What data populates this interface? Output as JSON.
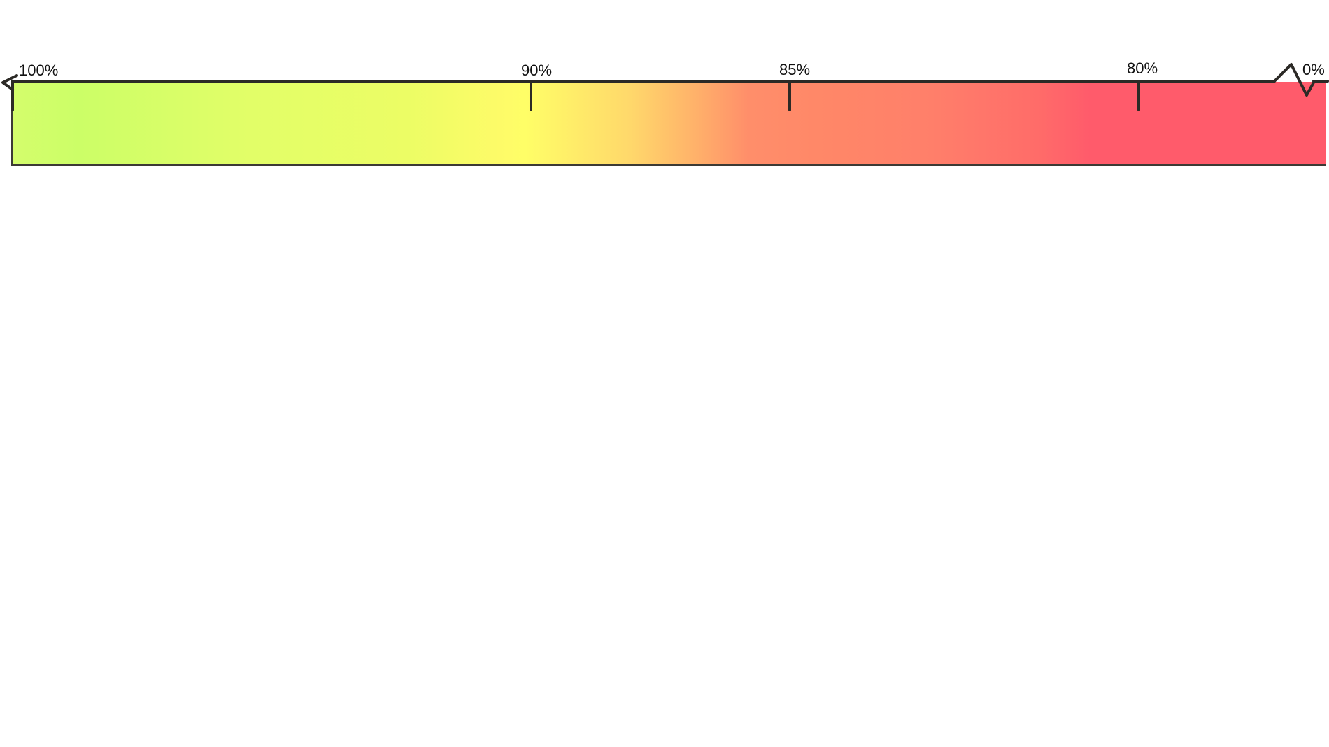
{
  "scale": {
    "ticks": [
      {
        "label": "100%",
        "value": 100
      },
      {
        "label": "90%",
        "value": 90
      },
      {
        "label": "85%",
        "value": 85
      },
      {
        "label": "80%",
        "value": 80
      },
      {
        "label": "0%",
        "value": 0
      }
    ]
  },
  "gradient": {
    "start_color": "#ccfe67",
    "middle_color": "#fffe67",
    "end_color": "#ff5b6b",
    "line_color": "#2c2a26"
  }
}
